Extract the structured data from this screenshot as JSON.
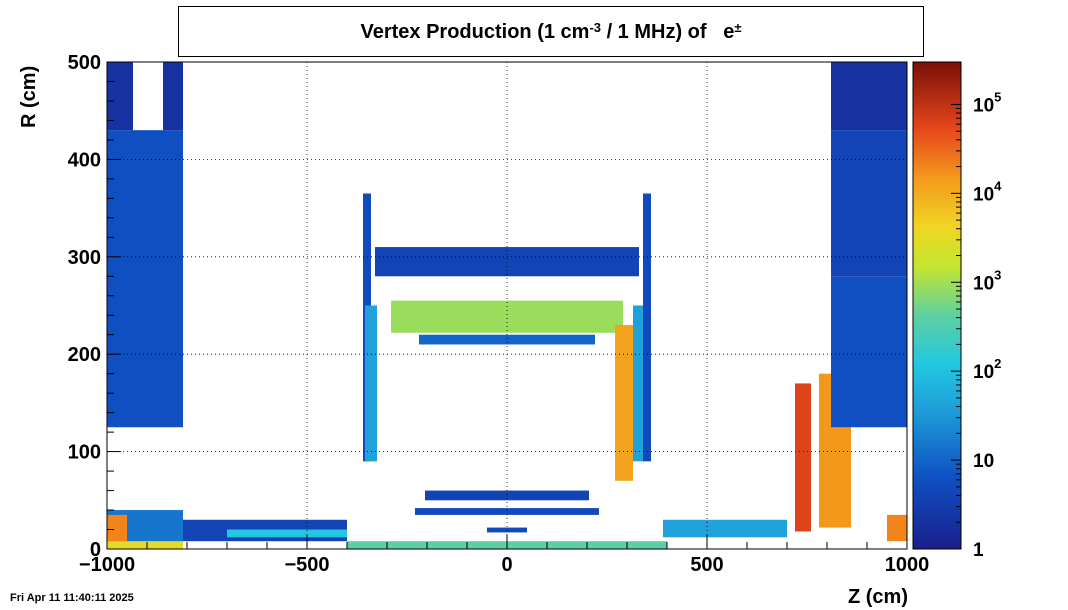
{
  "chart_data": {
    "type": "heatmap",
    "title": "Vertex Production (1 cm",
    "title_exp": "-3",
    "title_rest": " / 1 MHz) of",
    "title_particle": "e",
    "title_particle_sup": "±",
    "xlabel": "Z (cm)",
    "ylabel": "R (cm)",
    "xlim": [
      -1000,
      1000
    ],
    "ylim": [
      0,
      500
    ],
    "x_ticks": [
      -1000,
      -500,
      0,
      500,
      1000
    ],
    "x_tick_labels": [
      "−1000",
      "−500",
      "0",
      "500",
      "1000"
    ],
    "y_ticks": [
      0,
      100,
      200,
      300,
      400,
      500
    ],
    "y_tick_labels": [
      "0",
      "100",
      "200",
      "300",
      "400",
      "500"
    ],
    "grid": true,
    "colorbar": {
      "scale": "log",
      "range": [
        1,
        300000
      ],
      "ticks": [
        1,
        10,
        100,
        1000,
        10000,
        100000
      ],
      "tick_base": [
        "1",
        "10",
        "10",
        "10",
        "10",
        "10"
      ],
      "tick_exp": [
        "",
        "",
        "2",
        "3",
        "4",
        "5"
      ]
    },
    "regions": [
      {
        "z": [
          -1000,
          -810
        ],
        "r": [
          0,
          8
        ],
        "v": 3000
      },
      {
        "z": [
          -1000,
          -810
        ],
        "r": [
          8,
          40
        ],
        "v": 15
      },
      {
        "z": [
          -1000,
          -810
        ],
        "r": [
          125,
          430
        ],
        "v": 6
      },
      {
        "z": [
          -1000,
          -935
        ],
        "r": [
          430,
          500
        ],
        "v": 2
      },
      {
        "z": [
          -860,
          -810
        ],
        "r": [
          430,
          500
        ],
        "v": 2
      },
      {
        "z": [
          -810,
          -400
        ],
        "r": [
          8,
          30
        ],
        "v": 4
      },
      {
        "z": [
          -700,
          -400
        ],
        "r": [
          12,
          20
        ],
        "v": 120
      },
      {
        "z": [
          -400,
          400
        ],
        "r": [
          0,
          8
        ],
        "v": 400
      },
      {
        "z": [
          -360,
          -340
        ],
        "r": [
          90,
          365
        ],
        "v": 5
      },
      {
        "z": [
          -355,
          -325
        ],
        "r": [
          90,
          250
        ],
        "v": 40
      },
      {
        "z": [
          -330,
          330
        ],
        "r": [
          280,
          310
        ],
        "v": 4
      },
      {
        "z": [
          -290,
          290
        ],
        "r": [
          222,
          255
        ],
        "v": 900
      },
      {
        "z": [
          -220,
          220
        ],
        "r": [
          210,
          220
        ],
        "v": 10
      },
      {
        "z": [
          -205,
          205
        ],
        "r": [
          50,
          60
        ],
        "v": 4
      },
      {
        "z": [
          -230,
          230
        ],
        "r": [
          35,
          42
        ],
        "v": 5
      },
      {
        "z": [
          -50,
          50
        ],
        "r": [
          17,
          22
        ],
        "v": 5
      },
      {
        "z": [
          270,
          315
        ],
        "r": [
          70,
          230
        ],
        "v": 12000
      },
      {
        "z": [
          315,
          345
        ],
        "r": [
          90,
          250
        ],
        "v": 40
      },
      {
        "z": [
          340,
          360
        ],
        "r": [
          90,
          365
        ],
        "v": 5
      },
      {
        "z": [
          390,
          700
        ],
        "r": [
          12,
          30
        ],
        "v": 40
      },
      {
        "z": [
          720,
          760
        ],
        "r": [
          18,
          170
        ],
        "v": 60000
      },
      {
        "z": [
          780,
          860
        ],
        "r": [
          22,
          180
        ],
        "v": 15000
      },
      {
        "z": [
          810,
          1000
        ],
        "r": [
          125,
          280
        ],
        "v": 6
      },
      {
        "z": [
          810,
          1000
        ],
        "r": [
          280,
          430
        ],
        "v": 4
      },
      {
        "z": [
          810,
          1000
        ],
        "r": [
          430,
          500
        ],
        "v": 2
      },
      {
        "z": [
          950,
          1000
        ],
        "r": [
          8,
          35
        ],
        "v": 20000
      },
      {
        "z": [
          -1000,
          -950
        ],
        "r": [
          8,
          35
        ],
        "v": 20000
      }
    ]
  },
  "footer": {
    "datestamp": "Fri Apr 11 11:40:11 2025"
  }
}
